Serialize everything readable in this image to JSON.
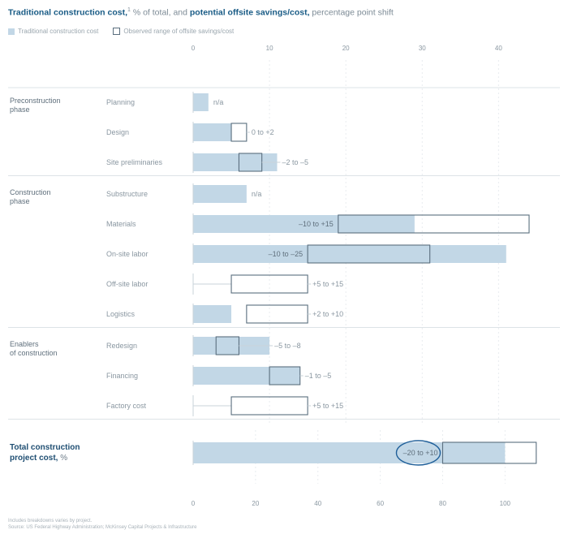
{
  "title": {
    "part1": "Traditional construction cost,",
    "sup": "1",
    "part2": " % of total, and ",
    "part3": "potential offsite savings/cost,",
    "part4": " percentage point shift"
  },
  "legend": {
    "fill_label": "Traditional construction cost",
    "box_label": "Observed range of offsite savings/cost"
  },
  "colors": {
    "bar_fill": "#c2d7e6",
    "range_stroke": "#5a6e7e",
    "circle": "#1f5f99",
    "grid": "#e8ecef"
  },
  "footer": {
    "note": "Includes breakdowns varies by project.",
    "source": "Source: US Federal Highway Administration; McKinsey Capital Projects & Infrastructure"
  },
  "chart_data": [
    {
      "type": "bar",
      "title": "Traditional construction cost, % of total, and potential offsite savings/cost, percentage point shift",
      "xlim": [
        0,
        44
      ],
      "xticks": [
        0,
        10,
        20,
        30,
        40
      ],
      "grid": true,
      "legend_position": "top-left",
      "groups": [
        {
          "name": "Preconstruction phase",
          "rows": [
            {
              "label": "Planning",
              "value": 2,
              "range": null,
              "range_label": "n/a"
            },
            {
              "label": "Design",
              "value": 5,
              "range": [
                5,
                7
              ],
              "range_label": "0 to +2"
            },
            {
              "label": "Site preliminaries",
              "value": 11,
              "range": [
                6,
                9
              ],
              "range_label": "–2 to –5"
            }
          ]
        },
        {
          "name": "Construction phase",
          "rows": [
            {
              "label": "Substructure",
              "value": 7,
              "range": null,
              "range_label": "n/a"
            },
            {
              "label": "Materials",
              "value": 29,
              "range": [
                19,
                44
              ],
              "range_label": "–10 to +15"
            },
            {
              "label": "On-site labor",
              "value": 41,
              "range": [
                15,
                31
              ],
              "range_label": "–10 to –25"
            },
            {
              "label": "Off-site labor",
              "value": 0,
              "range": [
                5,
                15
              ],
              "range_label": "+5 to +15"
            },
            {
              "label": "Logistics",
              "value": 5,
              "range": [
                7,
                15
              ],
              "range_label": "+2 to +10"
            }
          ]
        },
        {
          "name": "Enablers of construction",
          "rows": [
            {
              "label": "Redesign",
              "value": 10,
              "range": [
                3,
                6
              ],
              "range_label": "–5 to –8"
            },
            {
              "label": "Financing",
              "value": 14,
              "range": [
                10,
                14
              ],
              "range_label": "–1 to –5"
            },
            {
              "label": "Factory cost",
              "value": 0,
              "range": [
                5,
                15
              ],
              "range_label": "+5 to +15"
            }
          ]
        }
      ]
    },
    {
      "type": "bar",
      "xlim": [
        0,
        115
      ],
      "xticks": [
        0,
        20,
        40,
        60,
        80,
        100
      ],
      "rows": [
        {
          "label": "Total construction project cost, %",
          "label_bold": "Total construction",
          "label_bold2": "project cost,",
          "label_unit": " %",
          "value": 100,
          "range": [
            80,
            110
          ],
          "range_label": "–20 to +10",
          "highlighted": true
        }
      ]
    }
  ]
}
